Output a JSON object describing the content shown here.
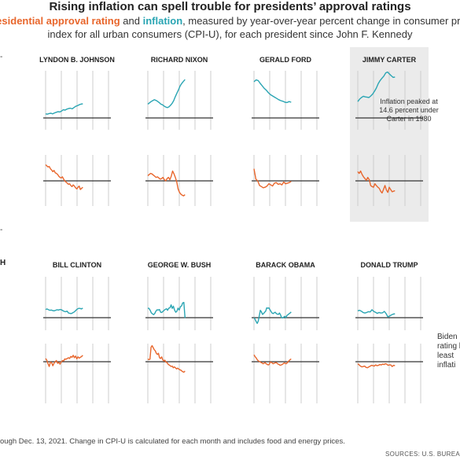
{
  "title": "Rising inflation can spell trouble for presidents’ approval ratings",
  "subtitle": {
    "approval_label": "residential approval rating",
    "and": " and ",
    "inflation_label": "inflation",
    "rest1": ", measured by year-over-year percent change in consumer pric",
    "line2": "index for all urban consumers (CPI-U), for each president since John F. Kennedy"
  },
  "footnote": "ough Dec. 13, 2021. Change in CPI-U is calculated for each month and includes food and energy prices.",
  "source": "SOURCES: U.S. BUREA",
  "edge_marks": {
    "left_top": "-",
    "left_mid": "-",
    "left_clinton_row": "H"
  },
  "annotations": {
    "carter": "Inflation peaked at 14.6 percent under Carter in 1980",
    "carter_lines": [
      "Inflation peaked at",
      "14.6 percent under",
      "Carter in 1980"
    ],
    "biden_lines": [
      "Biden",
      "rating h",
      "least",
      "inflati"
    ]
  },
  "colors": {
    "approval": "#e8662c",
    "inflation": "#2aa5b3",
    "highlight": "#ebebeb",
    "grid": "#cccccc",
    "baseline": "#333333"
  },
  "chart_data": [
    {
      "type": "line",
      "president": "LYNDON B. JOHNSON",
      "series": [
        {
          "name": "inflation",
          "values": [
            1.3,
            1.2,
            1.4,
            1.5,
            1.3,
            1.6,
            1.8,
            2.0,
            1.9,
            2.2,
            2.6,
            2.5,
            2.8,
            3.0,
            3.1,
            2.9,
            3.3,
            3.7,
            3.9,
            4.2,
            4.4,
            4.5
          ]
        },
        {
          "name": "approval",
          "values": [
            78,
            76,
            74,
            75,
            71,
            69,
            66,
            68,
            64,
            63,
            61,
            58,
            56,
            55,
            57,
            53,
            50,
            48,
            46,
            44,
            45,
            42,
            40,
            43,
            41,
            38,
            36,
            39,
            41,
            35,
            37,
            39
          ]
        }
      ]
    },
    {
      "type": "line",
      "president": "RICHARD NIXON",
      "series": [
        {
          "name": "inflation",
          "values": [
            4.4,
            4.8,
            5.2,
            5.5,
            5.8,
            5.6,
            5.3,
            4.9,
            4.4,
            4.2,
            3.8,
            3.5,
            3.3,
            3.5,
            4.0,
            4.6,
            5.5,
            6.8,
            7.9,
            9.0,
            10.2,
            11.0,
            11.6,
            12.2
          ]
        },
        {
          "name": "approval",
          "values": [
            59,
            61,
            63,
            62,
            60,
            58,
            56,
            57,
            55,
            53,
            54,
            56,
            52,
            50,
            54,
            56,
            52,
            58,
            67,
            62,
            56,
            48,
            36,
            30,
            27,
            25,
            24,
            26
          ]
        }
      ]
    },
    {
      "type": "line",
      "president": "GERALD FORD",
      "series": [
        {
          "name": "inflation",
          "values": [
            11.5,
            12.1,
            11.9,
            11.0,
            10.2,
            9.4,
            8.8,
            8.0,
            7.4,
            7.0,
            6.6,
            6.2,
            5.8,
            5.5,
            5.3,
            5.0,
            4.9,
            5.2,
            5.0
          ]
        },
        {
          "name": "approval",
          "values": [
            71,
            53,
            50,
            42,
            40,
            38,
            39,
            41,
            45,
            43,
            41,
            46,
            47,
            44,
            45,
            43,
            48,
            45,
            46,
            47,
            49
          ]
        }
      ]
    },
    {
      "type": "line",
      "president": "JIMMY CARTER",
      "series": [
        {
          "name": "inflation",
          "values": [
            5.2,
            6.0,
            6.5,
            6.9,
            6.7,
            6.6,
            6.5,
            7.0,
            7.6,
            8.5,
            9.5,
            10.9,
            11.9,
            12.6,
            13.3,
            14.3,
            14.6,
            14.0,
            13.4,
            12.9,
            13.0
          ]
        },
        {
          "name": "approval",
          "values": [
            66,
            63,
            67,
            61,
            57,
            54,
            51,
            56,
            52,
            42,
            40,
            39,
            45,
            42,
            39,
            37,
            32,
            29,
            35,
            42,
            34,
            30,
            39,
            35,
            31,
            32,
            33
          ]
        }
      ]
    },
    {
      "type": "line",
      "president": "BILL CLINTON",
      "series": [
        {
          "name": "inflation",
          "values": [
            3.0,
            3.2,
            2.9,
            2.7,
            2.8,
            2.6,
            2.5,
            2.7,
            2.9,
            2.8,
            3.0,
            2.9,
            2.6,
            2.3,
            2.2,
            2.4,
            1.7,
            1.6,
            1.5,
            1.8,
            2.1,
            2.6,
            3.1,
            3.4,
            3.4,
            3.2,
            3.5
          ]
        },
        {
          "name": "approval",
          "values": [
            58,
            54,
            45,
            38,
            49,
            48,
            40,
            46,
            50,
            53,
            46,
            48,
            44,
            49,
            53,
            52,
            57,
            56,
            58,
            60,
            58,
            63,
            61,
            66,
            60,
            64,
            57,
            62,
            59,
            61,
            63,
            66
          ]
        }
      ]
    },
    {
      "type": "line",
      "president": "GEORGE W. BUSH",
      "series": [
        {
          "name": "inflation",
          "values": [
            3.5,
            3.4,
            2.7,
            1.8,
            1.4,
            1.1,
            1.6,
            2.4,
            2.9,
            2.8,
            3.0,
            2.0,
            1.9,
            2.3,
            2.7,
            3.0,
            3.3,
            2.7,
            3.5,
            3.6,
            4.7,
            3.4,
            4.2,
            2.8,
            2.0,
            2.4,
            3.5,
            2.8,
            4.0,
            4.3,
            5.4,
            5.6,
            -0.1
          ]
        },
        {
          "name": "approval",
          "values": [
            57,
            55,
            56,
            86,
            90,
            85,
            80,
            77,
            71,
            68,
            71,
            60,
            58,
            62,
            55,
            52,
            54,
            49,
            48,
            44,
            42,
            40,
            38,
            39,
            35,
            37,
            35,
            32,
            34,
            32,
            30,
            29,
            27,
            25,
            24,
            27
          ]
        }
      ]
    },
    {
      "type": "line",
      "president": "BARACK OBAMA",
      "series": [
        {
          "name": "inflation",
          "values": [
            0.0,
            -0.6,
            -1.4,
            -2.1,
            -1.3,
            0.8,
            2.7,
            2.1,
            1.2,
            1.5,
            2.0,
            2.4,
            3.6,
            3.5,
            3.6,
            2.9,
            2.3,
            1.7,
            1.5,
            1.8,
            2.0,
            1.5,
            1.3,
            1.2,
            1.7,
            1.0,
            0.0,
            -0.1,
            0.2,
            0.5,
            0.0,
            0.8,
            1.1,
            1.4,
            1.7,
            2.1
          ]
        },
        {
          "name": "approval",
          "values": [
            67,
            63,
            60,
            56,
            53,
            51,
            50,
            48,
            47,
            45,
            46,
            48,
            45,
            44,
            42,
            43,
            48,
            49,
            47,
            45,
            46,
            47,
            48,
            46,
            44,
            43,
            41,
            42,
            43,
            45,
            47,
            46,
            45,
            47,
            50,
            53,
            55,
            57
          ]
        }
      ]
    },
    {
      "type": "line",
      "president": "DONALD TRUMP",
      "series": [
        {
          "name": "inflation",
          "values": [
            2.5,
            2.7,
            2.4,
            1.9,
            1.7,
            1.9,
            2.2,
            2.1,
            2.9,
            2.3,
            2.0,
            1.6,
            1.9,
            1.7,
            1.8,
            2.3,
            1.5,
            0.3,
            0.6,
            1.0,
            1.3,
            1.4
          ]
        },
        {
          "name": "approval",
          "values": [
            45,
            42,
            39,
            37,
            38,
            39,
            36,
            35,
            37,
            39,
            41,
            40,
            39,
            42,
            40,
            41,
            43,
            42,
            44,
            43,
            45,
            44,
            41,
            42,
            42,
            38,
            41,
            40
          ]
        }
      ]
    }
  ]
}
